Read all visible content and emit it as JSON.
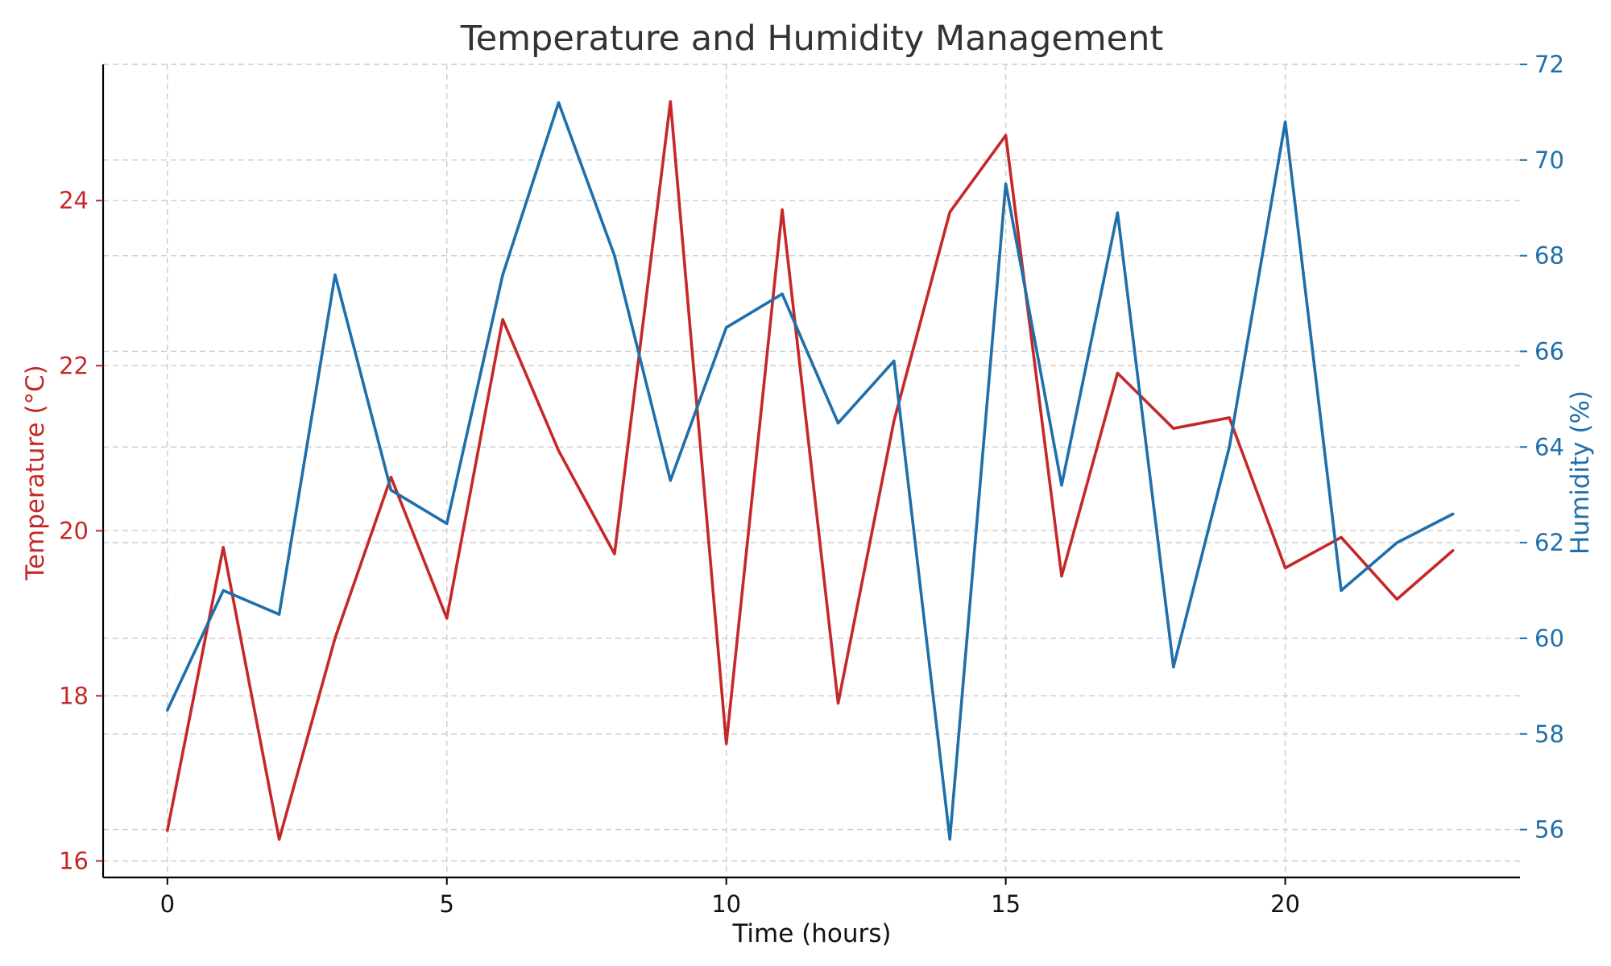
{
  "chart_data": {
    "type": "line",
    "title": "Temperature and Humidity Management",
    "xlabel": "Time (hours)",
    "ylabel_left": "Temperature (°C)",
    "ylabel_right": "Humidity (%)",
    "x": [
      0,
      1,
      2,
      3,
      4,
      5,
      6,
      7,
      8,
      9,
      10,
      11,
      12,
      13,
      14,
      15,
      16,
      17,
      18,
      19,
      20,
      21,
      22,
      23
    ],
    "xlim": [
      -1.15,
      24.2
    ],
    "xticks": [
      0,
      5,
      10,
      15,
      20
    ],
    "ylim_left": [
      15.8,
      25.65
    ],
    "yticks_left": [
      16,
      18,
      20,
      22,
      24
    ],
    "ylim_right": [
      55,
      72
    ],
    "yticks_right": [
      56,
      58,
      60,
      62,
      64,
      66,
      68,
      70,
      72
    ],
    "grid": true,
    "series": [
      {
        "axis": "left",
        "color": "#c62828",
        "values": [
          16.37,
          19.8,
          16.26,
          18.7,
          20.65,
          18.94,
          22.56,
          20.97,
          19.72,
          25.2,
          17.42,
          23.89,
          17.91,
          21.33,
          23.86,
          24.79,
          19.45,
          21.91,
          21.24,
          21.37,
          19.55,
          19.92,
          19.17,
          19.76
        ]
      },
      {
        "axis": "right",
        "color": "#1f6fab",
        "values": [
          58.5,
          61.0,
          60.5,
          67.6,
          63.1,
          62.4,
          67.6,
          71.2,
          68.0,
          63.3,
          66.5,
          67.2,
          64.5,
          65.8,
          55.8,
          69.5,
          63.2,
          68.9,
          59.4,
          64.0,
          70.8,
          61.0,
          62.0,
          62.6
        ]
      }
    ]
  }
}
